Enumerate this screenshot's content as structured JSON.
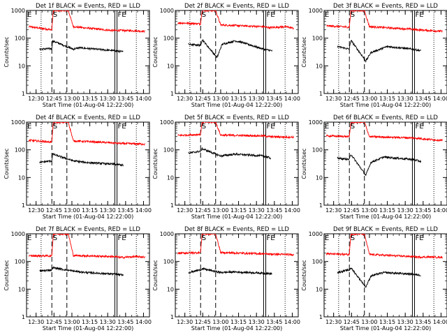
{
  "chart_data": [
    {
      "type": "line",
      "title": "Det 1f BLACK = Events, RED = LLD",
      "xlabel": "Start Time (01-Aug-04 12:22:00)",
      "ylabel": "Counts/sec",
      "ylim": [
        1,
        1000
      ],
      "yscale": "log",
      "xlim": [
        "12:22",
        "14:05"
      ],
      "xticks": [
        "12:30",
        "12:45",
        "13:00",
        "13:15",
        "13:30",
        "13:45",
        "14:00"
      ],
      "yticks": [
        "1",
        "10",
        "100",
        "1000"
      ],
      "markers": [
        "E",
        "S",
        "FE"
      ],
      "series": [
        {
          "name": "LLD",
          "color": "#ff0000",
          "profile": [
            [
              12.4,
              260
            ],
            [
              12.72,
              200
            ],
            [
              12.74,
              1000
            ],
            [
              12.95,
              1000
            ],
            [
              13.02,
              260
            ],
            [
              13.55,
              190
            ],
            [
              13.68,
              190
            ],
            [
              13.9,
              185
            ],
            [
              14.02,
              175
            ]
          ]
        },
        {
          "name": "Events",
          "color": "#000000",
          "profile": [
            [
              12.55,
              40
            ],
            [
              12.72,
              42
            ],
            [
              12.73,
              80
            ],
            [
              13.02,
              40
            ],
            [
              13.1,
              45
            ],
            [
              13.6,
              35
            ],
            [
              13.72,
              32
            ]
          ]
        }
      ]
    },
    {
      "type": "line",
      "title": "Det 2f BLACK = Events, RED = LLD",
      "xlabel": "Start Time (01-Aug-04 12:22:00)",
      "ylabel": "Counts/sec",
      "ylim": [
        1,
        1000
      ],
      "yscale": "log",
      "xlim": [
        "12:22",
        "14:05"
      ],
      "xticks": [
        "12:30",
        "12:45",
        "13:00",
        "13:15",
        "13:30",
        "13:45",
        "14:00"
      ],
      "yticks": [
        "1",
        "10",
        "100",
        "1000"
      ],
      "markers": [
        "S",
        "FE"
      ],
      "series": [
        {
          "name": "LLD",
          "color": "#ff0000",
          "profile": [
            [
              12.4,
              360
            ],
            [
              12.72,
              330
            ],
            [
              12.74,
              1000
            ],
            [
              12.93,
              1000
            ],
            [
              13.0,
              300
            ],
            [
              13.6,
              260
            ],
            [
              13.68,
              240
            ],
            [
              13.9,
              260
            ],
            [
              14.02,
              230
            ]
          ]
        },
        {
          "name": "Events",
          "color": "#000000",
          "profile": [
            [
              12.55,
              60
            ],
            [
              12.72,
              55
            ],
            [
              12.74,
              90
            ],
            [
              12.95,
              20
            ],
            [
              13.02,
              60
            ],
            [
              13.2,
              80
            ],
            [
              13.3,
              70
            ],
            [
              13.6,
              40
            ],
            [
              13.72,
              35
            ]
          ]
        }
      ]
    },
    {
      "type": "line",
      "title": "Det 3f BLACK = Events, RED = LLD",
      "xlabel": "Start Time (01-Aug-04 12:22:00)",
      "ylabel": "Counts/sec",
      "ylim": [
        1,
        1000
      ],
      "yscale": "log",
      "xlim": [
        "12:22",
        "14:05"
      ],
      "xticks": [
        "12:30",
        "12:45",
        "13:00",
        "13:15",
        "13:30",
        "13:45",
        "14:00"
      ],
      "yticks": [
        "1",
        "10",
        "100",
        "1000"
      ],
      "markers": [
        "E",
        "S",
        "FE"
      ],
      "series": [
        {
          "name": "LLD",
          "color": "#ff0000",
          "profile": [
            [
              12.4,
              280
            ],
            [
              12.72,
              250
            ],
            [
              12.74,
              1000
            ],
            [
              12.93,
              1000
            ],
            [
              13.0,
              260
            ],
            [
              13.6,
              210
            ],
            [
              13.68,
              200
            ],
            [
              13.9,
              185
            ],
            [
              14.02,
              175
            ]
          ]
        },
        {
          "name": "Events",
          "color": "#000000",
          "profile": [
            [
              12.55,
              50
            ],
            [
              12.72,
              40
            ],
            [
              12.74,
              85
            ],
            [
              12.95,
              15
            ],
            [
              13.02,
              30
            ],
            [
              13.25,
              50
            ],
            [
              13.6,
              40
            ],
            [
              13.72,
              35
            ]
          ]
        }
      ]
    },
    {
      "type": "line",
      "title": "Det 4f BLACK = Events, RED = LLD",
      "xlabel": "Start Time (01-Aug-04 12:22:00)",
      "ylabel": "Counts/sec",
      "ylim": [
        1,
        1000
      ],
      "yscale": "log",
      "xlim": [
        "12:22",
        "14:05"
      ],
      "xticks": [
        "12:30",
        "12:45",
        "13:00",
        "13:15",
        "13:30",
        "13:45",
        "14:00"
      ],
      "yticks": [
        "1",
        "10",
        "100",
        "1000"
      ],
      "markers": [
        "E",
        "S",
        "FE"
      ],
      "series": [
        {
          "name": "LLD",
          "color": "#ff0000",
          "profile": [
            [
              12.4,
              220
            ],
            [
              12.72,
              190
            ],
            [
              12.74,
              1000
            ],
            [
              12.95,
              1000
            ],
            [
              13.02,
              210
            ],
            [
              13.55,
              180
            ],
            [
              13.68,
              170
            ],
            [
              13.9,
              165
            ],
            [
              14.02,
              160
            ]
          ]
        },
        {
          "name": "Events",
          "color": "#000000",
          "profile": [
            [
              12.55,
              35
            ],
            [
              12.72,
              40
            ],
            [
              12.73,
              70
            ],
            [
              13.02,
              40
            ],
            [
              13.2,
              35
            ],
            [
              13.6,
              30
            ],
            [
              13.72,
              28
            ]
          ]
        }
      ]
    },
    {
      "type": "line",
      "title": "Det 5f BLACK = Events, RED = LLD",
      "xlabel": "Start Time (01-Aug-04 12:22:00)",
      "ylabel": "Counts/sec",
      "ylim": [
        1,
        1000
      ],
      "yscale": "log",
      "xlim": [
        "12:22",
        "14:05"
      ],
      "xticks": [
        "12:30",
        "12:45",
        "13:00",
        "13:15",
        "13:30",
        "13:45",
        "14:00"
      ],
      "yticks": [
        "1",
        "10",
        "100",
        "1000"
      ],
      "markers": [
        "S",
        "FE"
      ],
      "series": [
        {
          "name": "LLD",
          "color": "#ff0000",
          "profile": [
            [
              12.4,
              330
            ],
            [
              12.72,
              360
            ],
            [
              12.74,
              1000
            ],
            [
              12.93,
              1000
            ],
            [
              13.0,
              340
            ],
            [
              13.6,
              320
            ],
            [
              13.68,
              300
            ],
            [
              13.9,
              290
            ],
            [
              14.02,
              290
            ]
          ]
        },
        {
          "name": "Events",
          "color": "#000000",
          "profile": [
            [
              12.55,
              75
            ],
            [
              12.72,
              90
            ],
            [
              12.74,
              110
            ],
            [
              13.0,
              60
            ],
            [
              13.2,
              70
            ],
            [
              13.6,
              60
            ],
            [
              13.7,
              50
            ]
          ]
        }
      ]
    },
    {
      "type": "line",
      "title": "Det 6f BLACK = Events, RED = LLD",
      "xlabel": "Start Time (01-Aug-04 12:22:00)",
      "ylabel": "Counts/sec",
      "ylim": [
        1,
        1000
      ],
      "yscale": "log",
      "xlim": [
        "12:22",
        "14:05"
      ],
      "xticks": [
        "12:30",
        "12:45",
        "13:00",
        "13:15",
        "13:30",
        "13:45",
        "14:00"
      ],
      "yticks": [
        "1",
        "10",
        "100",
        "1000"
      ],
      "markers": [
        "E",
        "S",
        "FE"
      ],
      "series": [
        {
          "name": "LLD",
          "color": "#ff0000",
          "profile": [
            [
              12.4,
              320
            ],
            [
              12.72,
              300
            ],
            [
              12.74,
              1000
            ],
            [
              12.93,
              1000
            ],
            [
              13.0,
              300
            ],
            [
              13.6,
              270
            ],
            [
              13.68,
              260
            ],
            [
              13.9,
              230
            ],
            [
              14.02,
              220
            ]
          ]
        },
        {
          "name": "Events",
          "color": "#000000",
          "profile": [
            [
              12.55,
              50
            ],
            [
              12.72,
              45
            ],
            [
              12.74,
              70
            ],
            [
              12.95,
              12
            ],
            [
              13.02,
              35
            ],
            [
              13.2,
              55
            ],
            [
              13.6,
              45
            ],
            [
              13.72,
              38
            ]
          ]
        }
      ]
    },
    {
      "type": "line",
      "title": "Det 7f BLACK = Events, RED = LLD",
      "xlabel": "Start Time (01-Aug-04 12:22:00)",
      "ylabel": "Counts/sec",
      "ylim": [
        1,
        1000
      ],
      "yscale": "log",
      "xlim": [
        "12:22",
        "14:05"
      ],
      "xticks": [
        "12:30",
        "12:45",
        "13:00",
        "13:15",
        "13:30",
        "13:45",
        "14:00"
      ],
      "yticks": [
        "1",
        "10",
        "100",
        "1000"
      ],
      "markers": [
        "E",
        "S",
        "FE"
      ],
      "series": [
        {
          "name": "LLD",
          "color": "#ff0000",
          "profile": [
            [
              12.4,
              160
            ],
            [
              12.72,
              160
            ],
            [
              12.74,
              1000
            ],
            [
              12.95,
              1000
            ],
            [
              13.02,
              165
            ],
            [
              13.6,
              150
            ],
            [
              13.68,
              140
            ],
            [
              13.9,
              150
            ],
            [
              14.02,
              145
            ]
          ]
        },
        {
          "name": "Events",
          "color": "#000000",
          "profile": [
            [
              12.55,
              45
            ],
            [
              12.72,
              50
            ],
            [
              12.73,
              60
            ],
            [
              13.02,
              45
            ],
            [
              13.2,
              40
            ],
            [
              13.6,
              35
            ],
            [
              13.72,
              32
            ]
          ]
        }
      ]
    },
    {
      "type": "line",
      "title": "Det 8f BLACK = Events, RED = LLD",
      "xlabel": "Start Time (01-Aug-04 12:22:00)",
      "ylabel": "Counts/sec",
      "ylim": [
        1,
        1000
      ],
      "yscale": "log",
      "xlim": [
        "12:22",
        "14:05"
      ],
      "xticks": [
        "12:30",
        "12:45",
        "13:00",
        "13:15",
        "13:30",
        "13:45",
        "14:00"
      ],
      "yticks": [
        "1",
        "10",
        "100",
        "1000"
      ],
      "markers": [
        "S",
        "FE"
      ],
      "series": [
        {
          "name": "LLD",
          "color": "#ff0000",
          "profile": [
            [
              12.4,
              200
            ],
            [
              12.72,
              210
            ],
            [
              12.74,
              1000
            ],
            [
              12.93,
              1000
            ],
            [
              13.0,
              210
            ],
            [
              13.6,
              190
            ],
            [
              13.68,
              185
            ],
            [
              13.9,
              180
            ],
            [
              14.02,
              175
            ]
          ]
        },
        {
          "name": "Events",
          "color": "#000000",
          "profile": [
            [
              12.55,
              40
            ],
            [
              12.72,
              50
            ],
            [
              12.74,
              55
            ],
            [
              13.0,
              40
            ],
            [
              13.2,
              42
            ],
            [
              13.6,
              38
            ],
            [
              13.72,
              36
            ]
          ]
        }
      ]
    },
    {
      "type": "line",
      "title": "Det 9f BLACK = Events, RED = LLD",
      "xlabel": "Start Time (01-Aug-04 12:22:00)",
      "ylabel": "Counts/sec",
      "ylim": [
        1,
        1000
      ],
      "yscale": "log",
      "xlim": [
        "12:22",
        "14:05"
      ],
      "xticks": [
        "12:30",
        "12:45",
        "13:00",
        "13:15",
        "13:30",
        "13:45",
        "14:00"
      ],
      "yticks": [
        "1",
        "10",
        "100",
        "1000"
      ],
      "markers": [
        "E",
        "S",
        "FE"
      ],
      "series": [
        {
          "name": "LLD",
          "color": "#ff0000",
          "profile": [
            [
              12.4,
              190
            ],
            [
              12.72,
              180
            ],
            [
              12.74,
              1000
            ],
            [
              12.93,
              1000
            ],
            [
              13.0,
              180
            ],
            [
              13.6,
              150
            ],
            [
              13.68,
              145
            ],
            [
              13.9,
              145
            ],
            [
              14.02,
              140
            ]
          ]
        },
        {
          "name": "Events",
          "color": "#000000",
          "profile": [
            [
              12.55,
              40
            ],
            [
              12.72,
              50
            ],
            [
              12.74,
              60
            ],
            [
              12.95,
              12
            ],
            [
              13.02,
              30
            ],
            [
              13.2,
              40
            ],
            [
              13.6,
              35
            ],
            [
              13.72,
              32
            ]
          ]
        }
      ]
    }
  ]
}
